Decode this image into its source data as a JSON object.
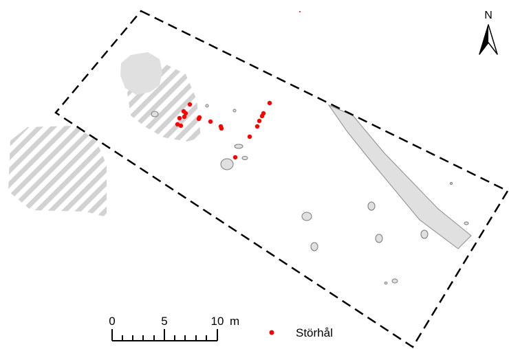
{
  "north_arrow": {
    "label": "N"
  },
  "scale_bar": {
    "tick_labels": [
      "0",
      "5",
      "10"
    ],
    "unit": "m"
  },
  "legend": {
    "items": [
      {
        "label": "Störhål",
        "color": "#ff0000"
      }
    ]
  },
  "colors": {
    "posthole": "#ff0000",
    "feature_fill": "#e0e0e0",
    "feature_stroke": "#7a7a7a",
    "hatch": "#d2d2d2",
    "boundary": "#000000"
  },
  "icons": {
    "north": "north-arrow-icon",
    "legend_marker": "red-dot-icon"
  }
}
